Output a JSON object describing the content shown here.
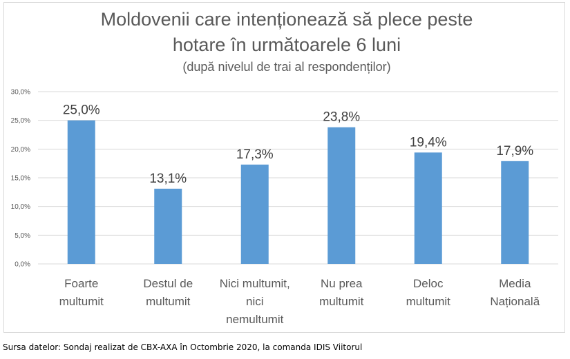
{
  "chart_data": {
    "type": "bar",
    "title_lines": [
      "Moldovenii care intenționează să plece peste",
      "hotare în următoarele 6 luni"
    ],
    "subtitle": "(după nivelul de trai al respondenților)",
    "categories": [
      [
        "Foarte",
        "multumit"
      ],
      [
        "Destul de",
        "multumit"
      ],
      [
        "Nici multumit,",
        "nici",
        "nemultumit"
      ],
      [
        "Nu prea",
        "multumit"
      ],
      [
        "Deloc",
        "multumit"
      ],
      [
        "Media",
        "Națională"
      ]
    ],
    "values": [
      25.0,
      13.1,
      17.3,
      23.8,
      19.4,
      17.9
    ],
    "data_labels": [
      "25,0%",
      "13,1%",
      "17,3%",
      "23,8%",
      "19,4%",
      "17,9%"
    ],
    "yticks": [
      "0,0%",
      "5,0%",
      "10,0%",
      "15,0%",
      "20,0%",
      "25,0%",
      "30,0%"
    ],
    "ylim": [
      0,
      30
    ],
    "bar_color": "#5b9bd5",
    "grid_color": "#d9d9d9",
    "grid": true,
    "legend": "none"
  },
  "source_text": "Sursa datelor: Sondaj realizat de CBX-AXA în Octombrie 2020, la comanda IDIS Viitorul"
}
